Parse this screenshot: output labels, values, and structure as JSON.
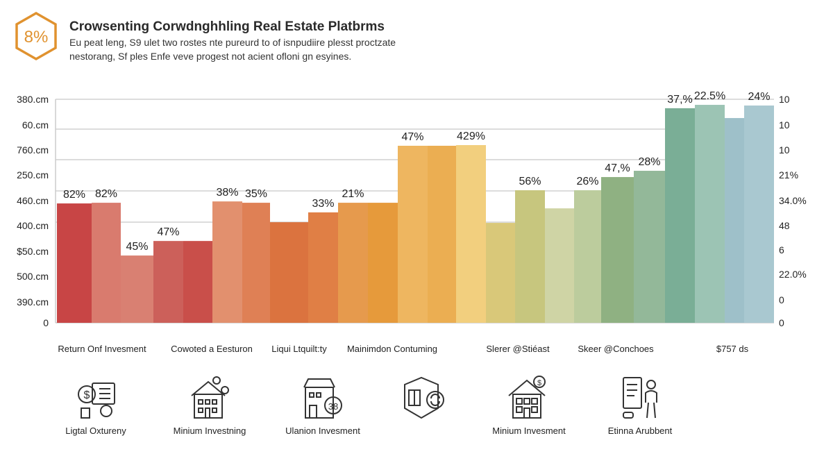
{
  "badge": {
    "text": "8%",
    "color": "#e0922f"
  },
  "header": {
    "title": "Crowsenting Corwdnghhling Real Estate Platbrms",
    "subtitle_line1": "Eu peat leng, S9 ulet two rostes nte pureurd to of isnpudiire plesst proctzate",
    "subtitle_line2": "nestorang, Sf ples Enfe veve progest not acient ofloni gn esyines."
  },
  "chart_data": {
    "type": "bar",
    "title": "Crowsenting Corwdnghhling Real Estate Platbrms",
    "grid": true,
    "value_unit": "percent of plot height",
    "ylim": [
      0,
      100
    ],
    "left_tick_labels": [
      "380.cm",
      "60.cm",
      "760.cm",
      "250.cm",
      "460.cm",
      "400.cm",
      "$50.cm",
      "500.cm",
      "390.cm",
      "0"
    ],
    "right_tick_labels": [
      "10",
      "10",
      "10",
      "21%",
      "34.0%",
      "48",
      "6",
      "22.0%",
      "0",
      "0"
    ],
    "x_category_labels": [
      "Return Onf Invesment",
      "Cowoted a Eesturon",
      "Liqui Ltquilt:ty",
      "Mainimdon Contuming",
      "Slerer @Stiéast",
      "Skeer @Conchoes",
      "$757 ds"
    ],
    "bars": [
      {
        "value": 53.4,
        "label": "82%",
        "color": "#c84545"
      },
      {
        "value": 53.7,
        "label": "82%",
        "color": "#d97b6e"
      },
      {
        "value": 30.1,
        "label": "45%",
        "color": "#d98072"
      },
      {
        "value": 36.6,
        "label": "47%",
        "color": "#cc605a"
      },
      {
        "value": 36.6,
        "label": "",
        "color": "#c94f4a"
      },
      {
        "value": 54.3,
        "label": "38%",
        "color": "#e2906e"
      },
      {
        "value": 53.7,
        "label": "35%",
        "color": "#df8055"
      },
      {
        "value": 45.0,
        "label": "",
        "color": "#db733f"
      },
      {
        "value": 49.4,
        "label": "33%",
        "color": "#e07f45"
      },
      {
        "value": 53.7,
        "label": "21%",
        "color": "#e69a4d"
      },
      {
        "value": 53.7,
        "label": "",
        "color": "#e69a3b"
      },
      {
        "value": 79.2,
        "label": "47%",
        "color": "#eeb660"
      },
      {
        "value": 79.2,
        "label": "",
        "color": "#ebae52"
      },
      {
        "value": 79.5,
        "label": "429%",
        "color": "#f2cf7e"
      },
      {
        "value": 44.7,
        "label": "",
        "color": "#d9c879"
      },
      {
        "value": 59.3,
        "label": "56%",
        "color": "#c7c67e"
      },
      {
        "value": 51.2,
        "label": "",
        "color": "#cfd4a5"
      },
      {
        "value": 59.3,
        "label": "26%",
        "color": "#bccc9d"
      },
      {
        "value": 65.2,
        "label": "47,%",
        "color": "#8fb182"
      },
      {
        "value": 68.0,
        "label": "28%",
        "color": "#93b899"
      },
      {
        "value": 96.0,
        "label": "37,%",
        "color": "#7aae96"
      },
      {
        "value": 97.5,
        "label": "22.5%",
        "color": "#9cc4b4"
      },
      {
        "value": 91.6,
        "label": "",
        "color": "#9ec0c9"
      },
      {
        "value": 97.2,
        "label": "24%",
        "color": "#a9c8d0"
      }
    ]
  },
  "features": [
    {
      "icon": "dollar-document-icon",
      "label": "Ligtal Oxtureny"
    },
    {
      "icon": "house-investment-icon",
      "label": "Minium Investning"
    },
    {
      "icon": "building-coin-icon",
      "label": "Ulanion Invesment"
    },
    {
      "icon": "shield-refresh-icon",
      "label": ""
    },
    {
      "icon": "house-dollar-icon",
      "label": "Minium Invesment"
    },
    {
      "icon": "person-board-icon",
      "label": "Etinna Arubbent"
    }
  ]
}
